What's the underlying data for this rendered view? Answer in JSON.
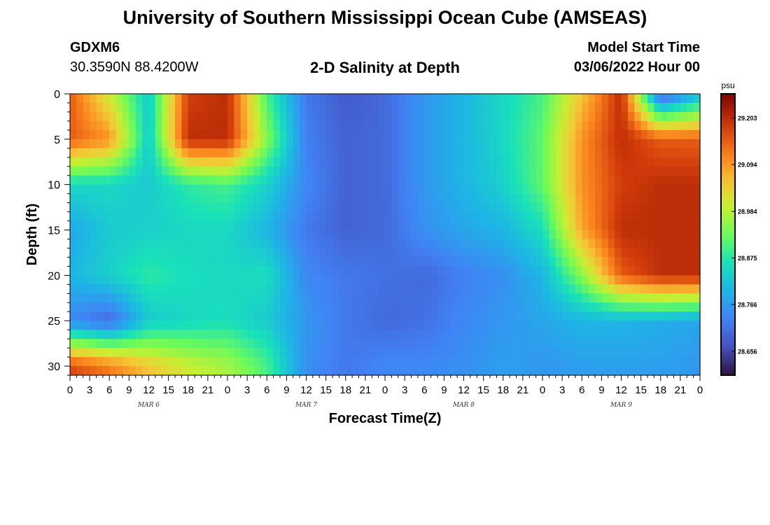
{
  "header": {
    "title_top": "University of Southern Mississippi Ocean Cube (AMSEAS)",
    "title_bottom": "University of Southern Mississippi Ocean Cube (AMSEAS)",
    "station_id": "GDXM6",
    "coords": "30.3590N  88.4200W",
    "subtitle": "2-D Salinity at Depth",
    "start_label": "Model Start Time",
    "start_value": "03/06/2022 Hour 00"
  },
  "chart_data": {
    "type": "heatmap",
    "title": "2-D Salinity at Depth",
    "xlabel": "Forecast Time(Z)",
    "ylabel": "Depth (ft)",
    "x_range_hours": [
      0,
      96
    ],
    "x_tick_labels": [
      "0",
      "3",
      "6",
      "9",
      "12",
      "15",
      "18",
      "21",
      "0",
      "3",
      "6",
      "9",
      "12",
      "15",
      "18",
      "21",
      "0",
      "3",
      "6",
      "9",
      "12",
      "15",
      "18",
      "21",
      "0",
      "3",
      "6",
      "9",
      "12",
      "15",
      "18",
      "21",
      "0"
    ],
    "date_labels": [
      {
        "label": "MAR 6",
        "hour": 12
      },
      {
        "label": "MAR 7",
        "hour": 36
      },
      {
        "label": "MAR 8",
        "hour": 60
      },
      {
        "label": "MAR 9",
        "hour": 84
      }
    ],
    "ylim": [
      0,
      31
    ],
    "y_ticks": [
      0,
      5,
      10,
      15,
      20,
      25,
      30
    ],
    "colorbar": {
      "unit": "psu",
      "min": 28.6,
      "max": 29.26,
      "tick_values": [
        29.203,
        29.094,
        28.984,
        28.875,
        28.766,
        28.656
      ],
      "tick_labels": [
        "29.203",
        "29.094",
        "28.984",
        "28.875",
        "28.766",
        "28.656"
      ]
    },
    "grid_hours": [
      0,
      6,
      12,
      18,
      24,
      30,
      36,
      42,
      48,
      54,
      60,
      66,
      72,
      78,
      84,
      90,
      96
    ],
    "grid_depths": [
      0,
      5,
      10,
      15,
      20,
      25,
      30
    ],
    "salinity_grid": [
      [
        29.15,
        29.0,
        28.83,
        29.18,
        29.2,
        28.9,
        28.72,
        28.68,
        28.7,
        28.76,
        28.8,
        28.85,
        28.9,
        29.05,
        29.2,
        28.68,
        28.8
      ],
      [
        29.15,
        29.1,
        28.83,
        29.2,
        29.2,
        28.95,
        28.73,
        28.69,
        28.7,
        28.76,
        28.8,
        28.85,
        28.92,
        29.1,
        29.2,
        29.15,
        29.15
      ],
      [
        28.85,
        28.85,
        28.83,
        28.88,
        28.9,
        28.84,
        28.74,
        28.69,
        28.7,
        28.76,
        28.8,
        28.84,
        28.92,
        29.1,
        29.18,
        29.2,
        29.2
      ],
      [
        28.78,
        28.83,
        28.84,
        28.85,
        28.85,
        28.8,
        28.72,
        28.69,
        28.7,
        28.75,
        28.78,
        28.8,
        28.86,
        29.08,
        29.2,
        29.2,
        29.2
      ],
      [
        28.8,
        28.84,
        28.88,
        28.86,
        28.85,
        28.86,
        28.74,
        28.72,
        28.71,
        28.7,
        28.73,
        28.75,
        28.8,
        28.95,
        29.15,
        29.2,
        29.2
      ],
      [
        28.74,
        28.7,
        28.83,
        28.85,
        28.86,
        28.83,
        28.76,
        28.72,
        28.7,
        28.71,
        28.74,
        28.76,
        28.78,
        28.8,
        28.8,
        28.79,
        28.78
      ],
      [
        29.17,
        29.12,
        29.05,
        29.0,
        28.97,
        28.9,
        28.75,
        28.72,
        28.74,
        28.74,
        28.75,
        28.77,
        28.76,
        28.77,
        28.77,
        28.77,
        28.76
      ]
    ]
  }
}
